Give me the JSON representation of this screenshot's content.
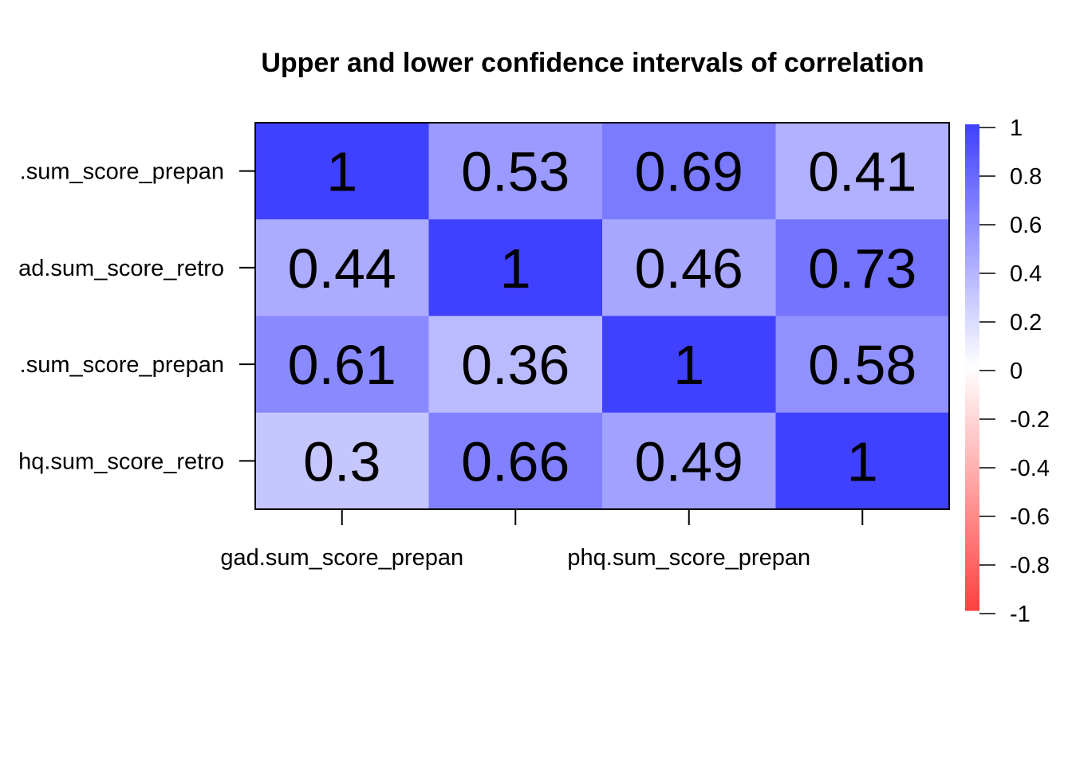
{
  "chart_data": {
    "type": "heatmap",
    "title": "Upper and lower confidence intervals of correlation",
    "row_labels": [
      "gad.sum_score_prepan",
      "gad.sum_score_retro",
      "phq.sum_score_prepan",
      "phq.sum_score_retro"
    ],
    "row_labels_visible": [
      ".sum_score_prepan",
      "ad.sum_score_retro",
      ".sum_score_prepan",
      "hq.sum_score_retro"
    ],
    "column_labels": [
      "gad.sum_score_prepan",
      "",
      "phq.sum_score_prepan",
      ""
    ],
    "values": [
      [
        1,
        0.53,
        0.69,
        0.41
      ],
      [
        0.44,
        1,
        0.46,
        0.73
      ],
      [
        0.61,
        0.36,
        1,
        0.58
      ],
      [
        0.3,
        0.66,
        0.49,
        1
      ]
    ],
    "cell_labels": [
      [
        "1",
        "0.53",
        "0.69",
        "0.41"
      ],
      [
        "0.44",
        "1",
        "0.46",
        "0.73"
      ],
      [
        "0.61",
        "0.36",
        "1",
        "0.58"
      ],
      [
        "0.3",
        "0.66",
        "0.49",
        "1"
      ]
    ],
    "color_scale": {
      "min": -1,
      "max": 1,
      "low_color": "#ff4040",
      "mid_color": "#ffffff",
      "high_color": "#4040ff",
      "ticks": [
        1,
        0.8,
        0.6,
        0.4,
        0.2,
        0,
        -0.2,
        -0.4,
        -0.6,
        -0.8,
        -1
      ],
      "tick_labels": [
        "1",
        "0.8",
        "0.6",
        "0.4",
        "0.2",
        "0",
        "-0.2",
        "-0.4",
        "-0.6",
        "-0.8",
        "-1"
      ],
      "legend_placement": "right"
    }
  }
}
